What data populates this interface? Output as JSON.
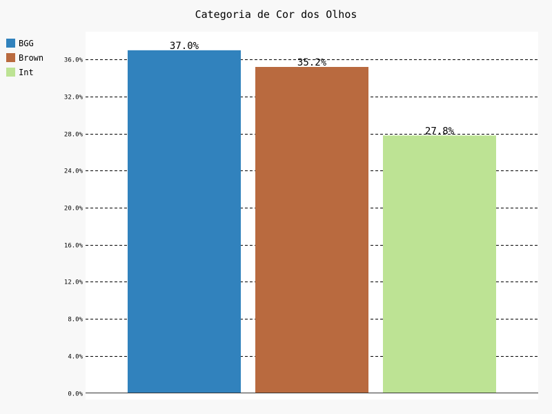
{
  "chart_data": {
    "type": "bar",
    "title": "Categoria de Cor dos Olhos",
    "xlabel": "",
    "ylabel": "",
    "categories": [
      "BGG",
      "Brown",
      "Int"
    ],
    "values": [
      37.0,
      35.2,
      27.8
    ],
    "data_labels": [
      "37.0%",
      "35.2%",
      "27.8%"
    ],
    "colors": [
      "#3182bd",
      "#b96a3f",
      "#bde394"
    ],
    "ylim": [
      0,
      39
    ],
    "yticks": [
      0,
      4,
      8,
      12,
      16,
      20,
      24,
      28,
      32,
      36
    ],
    "ytick_labels": [
      "0.0%",
      "4.0%",
      "8.0%",
      "12.0%",
      "16.0%",
      "20.0%",
      "24.0%",
      "28.0%",
      "32.0%",
      "36.0%"
    ],
    "grid": true,
    "grid_style": "dashed-horizontal",
    "legend": {
      "placement": "top-left",
      "entries": [
        "BGG",
        "Brown",
        "Int"
      ]
    },
    "background": "#f8f8f8",
    "plot_background": "#ffffff"
  }
}
